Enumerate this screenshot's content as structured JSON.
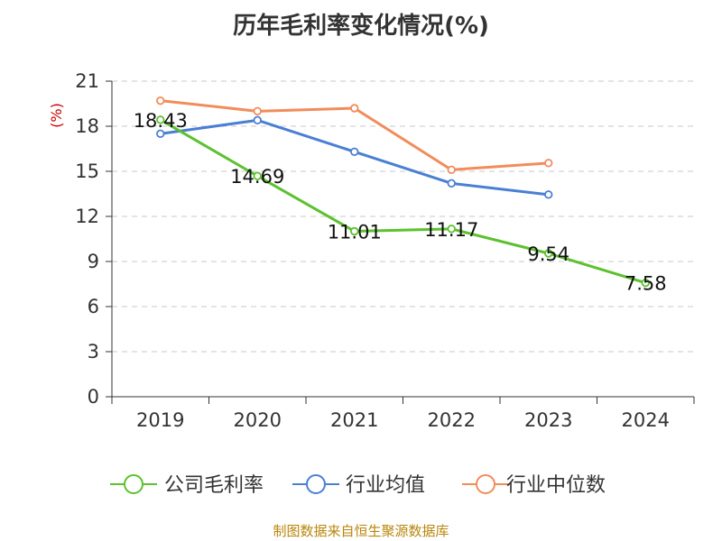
{
  "chart_data": {
    "type": "line",
    "title": "历年毛利率变化情况(%)",
    "ylabel": "(%)",
    "xlabel": "",
    "categories": [
      "2019",
      "2020",
      "2021",
      "2022",
      "2023",
      "2024"
    ],
    "ylim": [
      0,
      21
    ],
    "yticks": [
      0,
      3,
      6,
      9,
      12,
      15,
      18,
      21
    ],
    "grid": "horizontal dashed",
    "legend_position": "bottom",
    "series": [
      {
        "name": "公司毛利率",
        "color": "#5cc12f",
        "values": [
          18.43,
          14.69,
          11.01,
          11.17,
          9.54,
          7.58
        ],
        "labels": [
          "18.43",
          "14.69",
          "11.01",
          "11.17",
          "9.54",
          "7.58"
        ]
      },
      {
        "name": "行业均值",
        "color": "#4a7fd4",
        "values": [
          17.5,
          18.4,
          16.3,
          14.2,
          13.45,
          null
        ]
      },
      {
        "name": "行业中位数",
        "color": "#f28c5b",
        "values": [
          19.7,
          19.0,
          19.2,
          15.1,
          15.55,
          null
        ]
      }
    ]
  },
  "footer": {
    "source": "制图数据来自恒生聚源数据库"
  }
}
